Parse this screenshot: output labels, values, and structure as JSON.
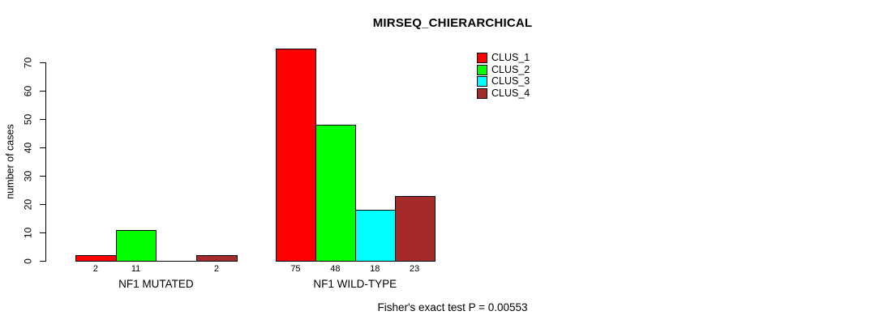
{
  "chart_data": {
    "type": "bar",
    "title": "MIRSEQ_CHIERARCHICAL",
    "ylabel": "number of cases",
    "xlabel": "",
    "ylim": [
      0,
      75
    ],
    "yticks": [
      0,
      10,
      20,
      30,
      40,
      50,
      60,
      70
    ],
    "grid": false,
    "categories": [
      "NF1 MUTATED",
      "NF1 WILD-TYPE"
    ],
    "series": [
      {
        "name": "CLUS_1",
        "color": "#ff0000",
        "values": [
          2,
          75
        ]
      },
      {
        "name": "CLUS_2",
        "color": "#00ff00",
        "values": [
          11,
          48
        ]
      },
      {
        "name": "CLUS_3",
        "color": "#00ffff",
        "values": [
          0,
          18
        ]
      },
      {
        "name": "CLUS_4",
        "color": "#a52a2a",
        "values": [
          2,
          23
        ]
      }
    ],
    "bar_value_labels": [
      [
        "2",
        "11",
        "",
        "2"
      ],
      [
        "75",
        "48",
        "18",
        "23"
      ]
    ],
    "legend_position": "top-right",
    "legend_entries": [
      "CLUS_1",
      "CLUS_2",
      "CLUS_3",
      "CLUS_4"
    ],
    "annotation": "Fisher's exact test P = 0.00553"
  }
}
